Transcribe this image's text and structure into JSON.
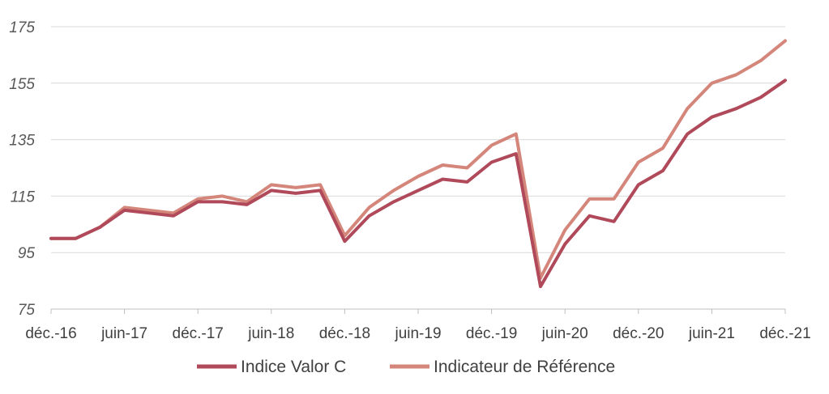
{
  "chart_data": {
    "type": "line",
    "title": "",
    "xlabel": "",
    "ylabel": "",
    "ylim": [
      75,
      175
    ],
    "y_ticks": [
      75,
      95,
      115,
      135,
      155,
      175
    ],
    "x_ticks": [
      "déc.-16",
      "juin-17",
      "déc.-17",
      "juin-18",
      "déc.-18",
      "juin-19",
      "déc.-19",
      "juin-20",
      "déc.-20",
      "juin-21",
      "déc.-21"
    ],
    "grid": "horizontal",
    "legend_position": "bottom",
    "x": [
      "déc.-16",
      "févr.-17",
      "avr.-17",
      "juin-17",
      "août-17",
      "oct.-17",
      "déc.-17",
      "févr.-18",
      "avr.-18",
      "juin-18",
      "août-18",
      "oct.-18",
      "déc.-18",
      "févr.-19",
      "avr.-19",
      "juin-19",
      "août-19",
      "oct.-19",
      "déc.-19",
      "févr.-20",
      "avr.-20",
      "juin-20",
      "août-20",
      "oct.-20",
      "déc.-20",
      "févr.-21",
      "avr.-21",
      "juin-21",
      "août-21",
      "oct.-21",
      "déc.-21"
    ],
    "series": [
      {
        "name": "Indice Valor C",
        "color": "#b04a5a",
        "values": [
          100,
          100,
          104,
          110,
          109,
          108,
          113,
          113,
          112,
          117,
          116,
          117,
          99,
          108,
          113,
          117,
          121,
          120,
          127,
          130,
          83,
          98,
          108,
          106,
          119,
          124,
          137,
          143,
          146,
          150,
          156
        ]
      },
      {
        "name": "Indicateur de Référence",
        "color": "#d4867b",
        "values": [
          100,
          100,
          104,
          111,
          110,
          109,
          114,
          115,
          113,
          119,
          118,
          119,
          101,
          111,
          117,
          122,
          126,
          125,
          133,
          137,
          86,
          103,
          114,
          114,
          127,
          132,
          146,
          155,
          158,
          163,
          170
        ]
      }
    ]
  }
}
